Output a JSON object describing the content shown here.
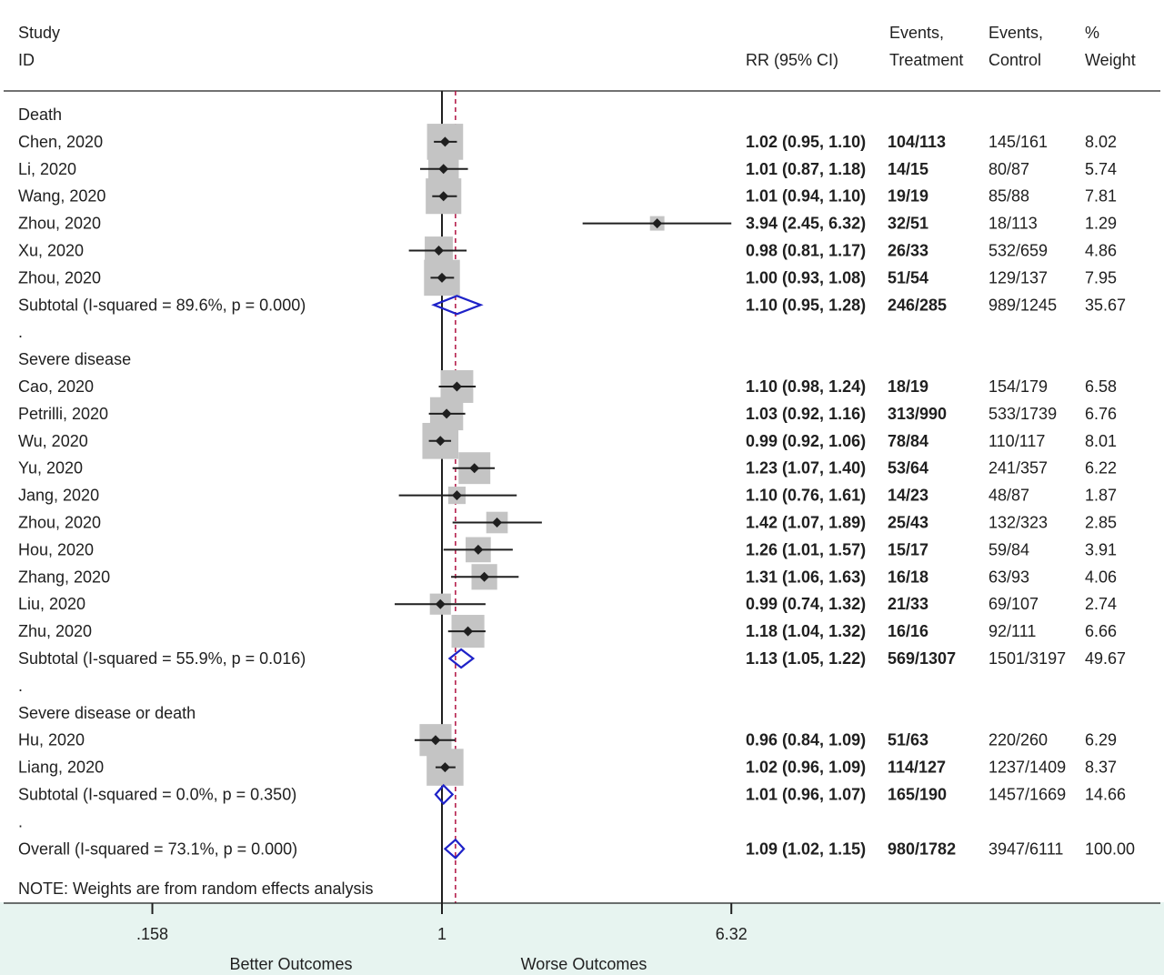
{
  "colors": {
    "footer_bg": "#e7f4f0",
    "box": "#c4c4c4",
    "diamond": "#1e22c8",
    "overall_line": "#b01040",
    "ink": "#1f1f1f"
  },
  "headers": {
    "study": [
      "Study",
      "ID"
    ],
    "rr": "RR (95% CI)",
    "events_treatment": [
      "Events,",
      "Treatment"
    ],
    "events_control": [
      "Events,",
      "Control"
    ],
    "weight": [
      "%",
      "Weight"
    ]
  },
  "note": "NOTE: Weights are from random effects analysis",
  "chart_data": {
    "type": "forest",
    "scale": "log",
    "null_value": 1,
    "overall_value": 1.09,
    "x_ticks": [
      {
        "value": 0.158,
        "label": ".158"
      },
      {
        "value": 1,
        "label": "1"
      },
      {
        "value": 6.32,
        "label": "6.32"
      }
    ],
    "direction_labels": {
      "left": "Better Outcomes",
      "right": "Worse Outcomes"
    },
    "rows": [
      {
        "kind": "group",
        "label": "Death"
      },
      {
        "kind": "study",
        "label": "Chen, 2020",
        "rr": 1.02,
        "lo": 0.95,
        "hi": 1.1,
        "rr_text": "1.02 (0.95, 1.10)",
        "treat": "104/113",
        "ctrl": "145/161",
        "weight": 8.02,
        "weight_text": "8.02"
      },
      {
        "kind": "study",
        "label": "Li, 2020",
        "rr": 1.01,
        "lo": 0.87,
        "hi": 1.18,
        "rr_text": "1.01 (0.87, 1.18)",
        "treat": "14/15",
        "ctrl": "80/87",
        "weight": 5.74,
        "weight_text": "5.74"
      },
      {
        "kind": "study",
        "label": "Wang, 2020",
        "rr": 1.01,
        "lo": 0.94,
        "hi": 1.1,
        "rr_text": "1.01 (0.94, 1.10)",
        "treat": "19/19",
        "ctrl": "85/88",
        "weight": 7.81,
        "weight_text": "7.81"
      },
      {
        "kind": "study",
        "label": "Zhou, 2020",
        "rr": 3.94,
        "lo": 2.45,
        "hi": 6.32,
        "rr_text": "3.94 (2.45, 6.32)",
        "treat": "32/51",
        "ctrl": "18/113",
        "weight": 1.29,
        "weight_text": "1.29"
      },
      {
        "kind": "study",
        "label": "Xu, 2020",
        "rr": 0.98,
        "lo": 0.81,
        "hi": 1.17,
        "rr_text": "0.98 (0.81, 1.17)",
        "treat": "26/33",
        "ctrl": "532/659",
        "weight": 4.86,
        "weight_text": "4.86"
      },
      {
        "kind": "study",
        "label": "Zhou, 2020",
        "rr": 1.0,
        "lo": 0.93,
        "hi": 1.08,
        "rr_text": "1.00 (0.93, 1.08)",
        "treat": "51/54",
        "ctrl": "129/137",
        "weight": 7.95,
        "weight_text": "7.95"
      },
      {
        "kind": "subtotal",
        "label": "Subtotal  (I-squared = 89.6%, p = 0.000)",
        "rr": 1.1,
        "lo": 0.95,
        "hi": 1.28,
        "rr_text": "1.10 (0.95, 1.28)",
        "treat": "246/285",
        "ctrl": "989/1245",
        "weight_text": "35.67"
      },
      {
        "kind": "spacer",
        "label": "."
      },
      {
        "kind": "group",
        "label": "Severe disease"
      },
      {
        "kind": "study",
        "label": "Cao, 2020",
        "rr": 1.1,
        "lo": 0.98,
        "hi": 1.24,
        "rr_text": "1.10 (0.98, 1.24)",
        "treat": "18/19",
        "ctrl": "154/179",
        "weight": 6.58,
        "weight_text": "6.58"
      },
      {
        "kind": "study",
        "label": "Petrilli, 2020",
        "rr": 1.03,
        "lo": 0.92,
        "hi": 1.16,
        "rr_text": "1.03 (0.92, 1.16)",
        "treat": "313/990",
        "ctrl": "533/1739",
        "weight": 6.76,
        "weight_text": "6.76"
      },
      {
        "kind": "study",
        "label": "Wu, 2020",
        "rr": 0.99,
        "lo": 0.92,
        "hi": 1.06,
        "rr_text": "0.99 (0.92, 1.06)",
        "treat": "78/84",
        "ctrl": "110/117",
        "weight": 8.01,
        "weight_text": "8.01"
      },
      {
        "kind": "study",
        "label": "Yu, 2020",
        "rr": 1.23,
        "lo": 1.07,
        "hi": 1.4,
        "rr_text": "1.23 (1.07, 1.40)",
        "treat": "53/64",
        "ctrl": "241/357",
        "weight": 6.22,
        "weight_text": "6.22"
      },
      {
        "kind": "study",
        "label": "Jang, 2020",
        "rr": 1.1,
        "lo": 0.76,
        "hi": 1.61,
        "rr_text": "1.10 (0.76, 1.61)",
        "treat": "14/23",
        "ctrl": "48/87",
        "weight": 1.87,
        "weight_text": "1.87"
      },
      {
        "kind": "study",
        "label": "Zhou, 2020",
        "rr": 1.42,
        "lo": 1.07,
        "hi": 1.89,
        "rr_text": "1.42 (1.07, 1.89)",
        "treat": "25/43",
        "ctrl": "132/323",
        "weight": 2.85,
        "weight_text": "2.85"
      },
      {
        "kind": "study",
        "label": "Hou, 2020",
        "rr": 1.26,
        "lo": 1.01,
        "hi": 1.57,
        "rr_text": "1.26 (1.01, 1.57)",
        "treat": "15/17",
        "ctrl": "59/84",
        "weight": 3.91,
        "weight_text": "3.91"
      },
      {
        "kind": "study",
        "label": "Zhang, 2020",
        "rr": 1.31,
        "lo": 1.06,
        "hi": 1.63,
        "rr_text": "1.31 (1.06, 1.63)",
        "treat": "16/18",
        "ctrl": "63/93",
        "weight": 4.06,
        "weight_text": "4.06"
      },
      {
        "kind": "study",
        "label": "Liu, 2020",
        "rr": 0.99,
        "lo": 0.74,
        "hi": 1.32,
        "rr_text": "0.99 (0.74, 1.32)",
        "treat": "21/33",
        "ctrl": "69/107",
        "weight": 2.74,
        "weight_text": "2.74"
      },
      {
        "kind": "study",
        "label": "Zhu, 2020",
        "rr": 1.18,
        "lo": 1.04,
        "hi": 1.32,
        "rr_text": "1.18 (1.04, 1.32)",
        "treat": "16/16",
        "ctrl": "92/111",
        "weight": 6.66,
        "weight_text": "6.66"
      },
      {
        "kind": "subtotal",
        "label": "Subtotal  (I-squared = 55.9%, p = 0.016)",
        "rr": 1.13,
        "lo": 1.05,
        "hi": 1.22,
        "rr_text": "1.13 (1.05, 1.22)",
        "treat": "569/1307",
        "ctrl": "1501/3197",
        "weight_text": "49.67"
      },
      {
        "kind": "spacer",
        "label": "."
      },
      {
        "kind": "group",
        "label": "Severe disease or death"
      },
      {
        "kind": "study",
        "label": "Hu, 2020",
        "rr": 0.96,
        "lo": 0.84,
        "hi": 1.09,
        "rr_text": "0.96 (0.84, 1.09)",
        "treat": "51/63",
        "ctrl": "220/260",
        "weight": 6.29,
        "weight_text": "6.29"
      },
      {
        "kind": "study",
        "label": "Liang, 2020",
        "rr": 1.02,
        "lo": 0.96,
        "hi": 1.09,
        "rr_text": "1.02 (0.96, 1.09)",
        "treat": "114/127",
        "ctrl": "1237/1409",
        "weight": 8.37,
        "weight_text": "8.37"
      },
      {
        "kind": "subtotal",
        "label": "Subtotal  (I-squared = 0.0%, p = 0.350)",
        "rr": 1.01,
        "lo": 0.96,
        "hi": 1.07,
        "rr_text": "1.01 (0.96, 1.07)",
        "treat": "165/190",
        "ctrl": "1457/1669",
        "weight_text": "14.66"
      },
      {
        "kind": "spacer",
        "label": "."
      },
      {
        "kind": "overall",
        "label": "Overall  (I-squared = 73.1%, p = 0.000)",
        "rr": 1.09,
        "lo": 1.02,
        "hi": 1.15,
        "rr_text": "1.09 (1.02, 1.15)",
        "treat": "980/1782",
        "ctrl": "3947/6111",
        "weight_text": "100.00"
      }
    ]
  }
}
